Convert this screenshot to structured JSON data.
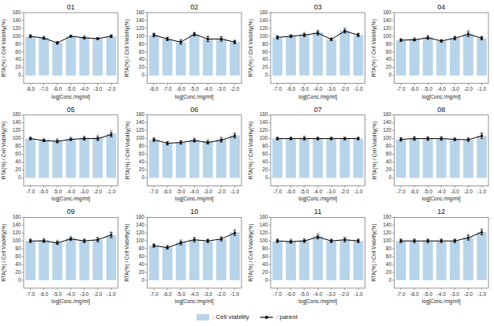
{
  "chart_data": [
    {
      "type": "bar",
      "title": "01",
      "xlabel": "log[Conc./mg/ml]",
      "ylabel": "RTA(%) / Cell Viability(%)",
      "categories": [
        "-8.0",
        "-7.0",
        "-6.0",
        "-5.0",
        "-4.0",
        "-3.0",
        "-2.0"
      ],
      "series": [
        {
          "name": ": Cell viability",
          "type": "bar",
          "color": "#b8d4ea",
          "values": [
            100,
            97,
            83,
            100,
            98,
            94,
            100
          ],
          "errors": [
            5,
            4,
            4,
            3,
            4,
            3,
            4
          ]
        },
        {
          "name": ": parent",
          "type": "line",
          "color": "black",
          "marker": "circle",
          "values": [
            100,
            95,
            83,
            100,
            96,
            94,
            100
          ],
          "errors": [
            3,
            3,
            3,
            2,
            3,
            2,
            3
          ]
        }
      ],
      "ylim": [
        -20,
        160
      ],
      "yticks": [
        0,
        20,
        40,
        60,
        80,
        100,
        120,
        140,
        160
      ],
      "legend": "bottom"
    },
    {
      "type": "bar",
      "title": "02",
      "xlabel": "log[Conc./mg/ml]",
      "ylabel": "RTA(%) / Cell Viability(%)",
      "categories": [
        "-8.0",
        "-7.0",
        "-6.0",
        "-5.0",
        "-4.0",
        "-3.0",
        "-2.0"
      ],
      "series": [
        {
          "name": ": Cell viability",
          "type": "bar",
          "color": "#b8d4ea",
          "values": [
            103,
            93,
            85,
            105,
            93,
            93,
            85
          ],
          "errors": [
            5,
            5,
            7,
            5,
            8,
            7,
            5
          ]
        },
        {
          "name": ": parent",
          "type": "line",
          "color": "black",
          "marker": "circle",
          "values": [
            103,
            93,
            85,
            105,
            93,
            93,
            85
          ],
          "errors": [
            4,
            4,
            5,
            4,
            6,
            5,
            4
          ]
        }
      ],
      "ylim": [
        -20,
        160
      ],
      "yticks": [
        0,
        20,
        40,
        60,
        80,
        100,
        120,
        140,
        160
      ]
    },
    {
      "type": "bar",
      "title": "03",
      "xlabel": "log[Conc./mg/ml]",
      "ylabel": "RTA(%) / Cell Viability(%)",
      "categories": [
        "-7.0",
        "-6.0",
        "-5.0",
        "-4.0",
        "-3.0",
        "-2.0",
        "-1.0"
      ],
      "series": [
        {
          "name": ": Cell viability",
          "type": "bar",
          "color": "#b8d4ea",
          "values": [
            97,
            100,
            105,
            110,
            92,
            115,
            103
          ],
          "errors": [
            5,
            4,
            5,
            6,
            4,
            7,
            5
          ]
        },
        {
          "name": ": parent",
          "type": "line",
          "color": "black",
          "marker": "circle",
          "values": [
            97,
            100,
            103,
            108,
            92,
            113,
            103
          ],
          "errors": [
            4,
            3,
            4,
            5,
            3,
            5,
            4
          ]
        }
      ],
      "ylim": [
        -20,
        160
      ],
      "yticks": [
        0,
        20,
        40,
        60,
        80,
        100,
        120,
        140,
        160
      ]
    },
    {
      "type": "bar",
      "title": "04",
      "xlabel": "log[Conc./mg/ml]",
      "ylabel": "RTA(%) / Cell Viability(%)",
      "categories": [
        "-7.0",
        "-6.0",
        "-5.0",
        "-4.0",
        "-3.0",
        "-2.0",
        "-1.0"
      ],
      "series": [
        {
          "name": ": Cell viability",
          "type": "bar",
          "color": "#b8d4ea",
          "values": [
            90,
            93,
            98,
            88,
            95,
            107,
            95
          ],
          "errors": [
            4,
            4,
            5,
            4,
            5,
            8,
            5
          ]
        },
        {
          "name": ": parent",
          "type": "line",
          "color": "black",
          "marker": "circle",
          "values": [
            90,
            91,
            96,
            88,
            95,
            105,
            95
          ],
          "errors": [
            3,
            3,
            4,
            3,
            4,
            6,
            4
          ]
        }
      ],
      "ylim": [
        -20,
        160
      ],
      "yticks": [
        0,
        20,
        40,
        60,
        80,
        100,
        120,
        140,
        160
      ]
    },
    {
      "type": "bar",
      "title": "05",
      "xlabel": "log[Conc./mg/ml]",
      "ylabel": "RTA(%) / Cell Viability(%)",
      "categories": [
        "-7.0",
        "-6.0",
        "-5.0",
        "-4.0",
        "-3.0",
        "-2.0",
        "-1.0"
      ],
      "series": [
        {
          "name": ": Cell viability",
          "type": "bar",
          "color": "#b8d4ea",
          "values": [
            100,
            97,
            95,
            100,
            102,
            103,
            113
          ],
          "errors": [
            4,
            4,
            5,
            4,
            5,
            6,
            8
          ]
        },
        {
          "name": ": parent",
          "type": "line",
          "color": "black",
          "marker": "circle",
          "values": [
            100,
            95,
            93,
            98,
            100,
            100,
            110
          ],
          "errors": [
            3,
            3,
            4,
            3,
            4,
            5,
            6
          ]
        }
      ],
      "ylim": [
        -20,
        160
      ],
      "yticks": [
        0,
        20,
        40,
        60,
        80,
        100,
        120,
        140,
        160
      ]
    },
    {
      "type": "bar",
      "title": "06",
      "xlabel": "log[Conc./mg/ml]",
      "ylabel": "RTA(%) / Cell Viability(%)",
      "categories": [
        "-7.0",
        "-6.0",
        "-5.0",
        "-4.0",
        "-3.0",
        "-2.0",
        "-1.0"
      ],
      "series": [
        {
          "name": ": Cell viability",
          "type": "bar",
          "color": "#b8d4ea",
          "values": [
            97,
            88,
            90,
            97,
            93,
            98,
            108
          ],
          "errors": [
            5,
            5,
            5,
            5,
            5,
            6,
            7
          ]
        },
        {
          "name": ": parent",
          "type": "line",
          "color": "black",
          "marker": "circle",
          "values": [
            97,
            88,
            90,
            95,
            90,
            96,
            107
          ],
          "errors": [
            4,
            4,
            4,
            4,
            4,
            5,
            5
          ]
        }
      ],
      "ylim": [
        -20,
        160
      ],
      "yticks": [
        0,
        20,
        40,
        60,
        80,
        100,
        120,
        140,
        160
      ]
    },
    {
      "type": "bar",
      "title": "07",
      "xlabel": "log[Conc./mg/ml]",
      "ylabel": "RTA(%) / Cell Viability(%)",
      "categories": [
        "-7.0",
        "-6.0",
        "-5.0",
        "-4.0",
        "-3.0",
        "-2.0",
        "-1.0"
      ],
      "series": [
        {
          "name": ": Cell viability",
          "type": "bar",
          "color": "#b8d4ea",
          "values": [
            100,
            100,
            102,
            100,
            100,
            100,
            100
          ],
          "errors": [
            4,
            4,
            5,
            4,
            4,
            4,
            4
          ]
        },
        {
          "name": ": parent",
          "type": "line",
          "color": "black",
          "marker": "circle",
          "values": [
            100,
            100,
            100,
            100,
            100,
            100,
            100
          ],
          "errors": [
            3,
            3,
            4,
            3,
            3,
            3,
            3
          ]
        }
      ],
      "ylim": [
        -20,
        160
      ],
      "yticks": [
        0,
        20,
        40,
        60,
        80,
        100,
        120,
        140,
        160
      ]
    },
    {
      "type": "bar",
      "title": "08",
      "xlabel": "log[Conc./mg/ml]",
      "ylabel": "RTA(%) / Cell Viability(%)",
      "categories": [
        "-7.0",
        "-6.0",
        "-5.0",
        "-4.0",
        "-3.0",
        "-2.0",
        "-1.0"
      ],
      "series": [
        {
          "name": ": Cell viability",
          "type": "bar",
          "color": "#b8d4ea",
          "values": [
            98,
            100,
            100,
            100,
            98,
            97,
            107
          ],
          "errors": [
            5,
            5,
            5,
            5,
            4,
            5,
            8
          ]
        },
        {
          "name": ": parent",
          "type": "line",
          "color": "black",
          "marker": "circle",
          "values": [
            98,
            100,
            100,
            100,
            98,
            97,
            107
          ],
          "errors": [
            4,
            4,
            4,
            4,
            3,
            4,
            6
          ]
        }
      ],
      "ylim": [
        -20,
        160
      ],
      "yticks": [
        0,
        20,
        40,
        60,
        80,
        100,
        120,
        140,
        160
      ]
    },
    {
      "type": "bar",
      "title": "09",
      "xlabel": "log[Conc./mg/ml]",
      "ylabel": "RTA(%) / Cell Viability(%)",
      "categories": [
        "-7.0",
        "-6.0",
        "-5.0",
        "-4.0",
        "-3.0",
        "-2.0",
        "-1.0"
      ],
      "series": [
        {
          "name": ": Cell viability",
          "type": "bar",
          "color": "#b8d4ea",
          "values": [
            100,
            102,
            97,
            107,
            100,
            103,
            115
          ],
          "errors": [
            5,
            5,
            5,
            5,
            5,
            6,
            8
          ]
        },
        {
          "name": ": parent",
          "type": "line",
          "color": "black",
          "marker": "circle",
          "values": [
            100,
            100,
            95,
            105,
            100,
            103,
            115
          ],
          "errors": [
            4,
            4,
            4,
            4,
            4,
            5,
            6
          ]
        }
      ],
      "ylim": [
        -20,
        160
      ],
      "yticks": [
        0,
        20,
        40,
        60,
        80,
        100,
        120,
        140,
        160
      ]
    },
    {
      "type": "bar",
      "title": "10",
      "xlabel": "log[Conc./mg/ml]",
      "ylabel": "RTA(%) / Cell Viability(%)",
      "categories": [
        "-7.0",
        "-6.0",
        "-5.0",
        "-4.0",
        "-3.0",
        "-2.0",
        "-1.0"
      ],
      "series": [
        {
          "name": ": Cell viability",
          "type": "bar",
          "color": "#b8d4ea",
          "values": [
            88,
            85,
            97,
            103,
            100,
            105,
            122
          ],
          "errors": [
            5,
            5,
            6,
            6,
            5,
            6,
            8
          ]
        },
        {
          "name": ": parent",
          "type": "line",
          "color": "black",
          "marker": "circle",
          "values": [
            88,
            83,
            95,
            103,
            100,
            105,
            120
          ],
          "errors": [
            4,
            4,
            5,
            5,
            4,
            5,
            6
          ]
        }
      ],
      "ylim": [
        -20,
        160
      ],
      "yticks": [
        0,
        20,
        40,
        60,
        80,
        100,
        120,
        140,
        160
      ]
    },
    {
      "type": "bar",
      "title": "11",
      "xlabel": "log[Conc./mg/ml]",
      "ylabel": "RTA(%) / Cell Viability(%)",
      "categories": [
        "-7.0",
        "-6.0",
        "-5.0",
        "-4.0",
        "-3.0",
        "-2.0",
        "-1.0"
      ],
      "series": [
        {
          "name": ": Cell viability",
          "type": "bar",
          "color": "#b8d4ea",
          "values": [
            100,
            100,
            102,
            113,
            100,
            103,
            100
          ],
          "errors": [
            5,
            5,
            5,
            7,
            5,
            6,
            5
          ]
        },
        {
          "name": ": parent",
          "type": "line",
          "color": "black",
          "marker": "circle",
          "values": [
            100,
            98,
            100,
            110,
            100,
            103,
            100
          ],
          "errors": [
            4,
            4,
            4,
            5,
            4,
            5,
            4
          ]
        }
      ],
      "ylim": [
        -20,
        160
      ],
      "yticks": [
        0,
        20,
        40,
        60,
        80,
        100,
        120,
        140,
        160
      ]
    },
    {
      "type": "bar",
      "title": "12",
      "xlabel": "log[Conc./mg/ml]",
      "ylabel": "RTA(%) / Cell Viability(%)",
      "categories": [
        "-7.0",
        "-6.0",
        "-5.0",
        "-4.0",
        "-3.0",
        "-2.0",
        "-1.0"
      ],
      "series": [
        {
          "name": ": Cell viability",
          "type": "bar",
          "color": "#b8d4ea",
          "values": [
            100,
            100,
            100,
            100,
            100,
            110,
            123
          ],
          "errors": [
            5,
            5,
            5,
            5,
            5,
            7,
            8
          ]
        },
        {
          "name": ": parent",
          "type": "line",
          "color": "black",
          "marker": "circle",
          "values": [
            100,
            100,
            100,
            100,
            100,
            108,
            122
          ],
          "errors": [
            4,
            4,
            4,
            4,
            4,
            6,
            6
          ]
        }
      ],
      "ylim": [
        -20,
        160
      ],
      "yticks": [
        0,
        20,
        40,
        60,
        80,
        100,
        120,
        140,
        160
      ]
    }
  ]
}
